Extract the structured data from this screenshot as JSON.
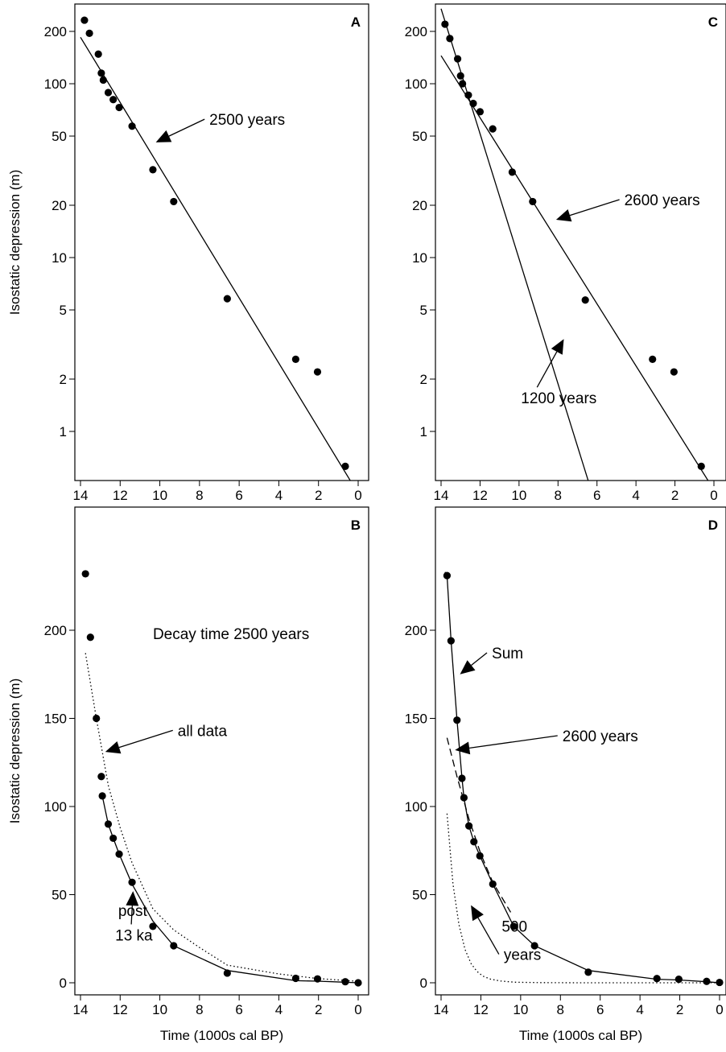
{
  "chart_data": [
    {
      "panel": "A",
      "type": "scatter",
      "scale": "log",
      "ylabel": "Isostatic depression (m)",
      "xlabel": "",
      "xlim": [
        14,
        0
      ],
      "ylim": [
        0.5,
        300
      ],
      "xticks": [
        14,
        12,
        10,
        8,
        6,
        4,
        2,
        0
      ],
      "yticks": [
        1,
        2,
        5,
        10,
        20,
        50,
        100,
        200
      ],
      "points": [
        [
          13.8,
          232
        ],
        [
          13.55,
          195
        ],
        [
          13.1,
          148
        ],
        [
          12.95,
          115
        ],
        [
          12.85,
          105
        ],
        [
          12.6,
          89
        ],
        [
          12.35,
          81
        ],
        [
          12.05,
          73
        ],
        [
          11.4,
          57
        ],
        [
          10.35,
          32
        ],
        [
          9.3,
          21
        ],
        [
          6.6,
          5.8
        ],
        [
          3.15,
          2.6
        ],
        [
          2.05,
          2.2
        ],
        [
          0.65,
          0.63
        ]
      ],
      "lines": [
        {
          "name": "2500 years",
          "style": "solid",
          "x": [
            14,
            0.3
          ],
          "y": [
            185,
            0.5
          ]
        }
      ],
      "annotations": [
        {
          "text": "2500 years",
          "x": 7.5,
          "y": 58,
          "arrow_to": [
            10.2,
            46
          ]
        }
      ]
    },
    {
      "panel": "B",
      "type": "scatter",
      "scale": "linear",
      "ylabel": "Isostatic depression (m)",
      "xlabel": "Time (1000s cal BP)",
      "xlim": [
        14,
        0
      ],
      "ylim": [
        -10,
        240
      ],
      "xticks": [
        14,
        12,
        10,
        8,
        6,
        4,
        2,
        0
      ],
      "yticks": [
        0,
        50,
        100,
        150,
        200
      ],
      "points": [
        [
          13.75,
          232
        ],
        [
          13.5,
          196
        ],
        [
          13.2,
          150
        ],
        [
          12.95,
          117
        ],
        [
          12.9,
          106
        ],
        [
          12.6,
          90
        ],
        [
          12.35,
          82
        ],
        [
          12.05,
          73
        ],
        [
          11.4,
          57
        ],
        [
          10.35,
          32
        ],
        [
          9.3,
          21
        ],
        [
          6.6,
          5.5
        ],
        [
          3.15,
          2.5
        ],
        [
          2.05,
          2.2
        ],
        [
          0.65,
          0.6
        ],
        [
          0.0,
          0.0
        ]
      ],
      "lines": [
        {
          "name": "all data",
          "style": "dotted",
          "x": [
            13.75,
            13.2,
            12.6,
            12.0,
            11.4,
            10.35,
            9.3,
            8,
            6.6,
            4,
            2.05,
            0
          ],
          "y": [
            187,
            150,
            112,
            88,
            68,
            42,
            30,
            20,
            10,
            5,
            2.4,
            0.8
          ]
        },
        {
          "name": "post 13 ka",
          "style": "solid",
          "x": [
            12.9,
            12.6,
            12.35,
            12.05,
            11.4,
            10.35,
            9.3,
            6.6,
            3.15,
            2.05,
            0.65,
            0
          ],
          "y": [
            106,
            90,
            82,
            73,
            56,
            35,
            21,
            7,
            1.2,
            0.9,
            0.3,
            0
          ]
        }
      ],
      "annotations": [
        {
          "text": "Decay time 2500 years",
          "x": 10.35,
          "y": 195
        },
        {
          "text": "all data",
          "x": 9.1,
          "y": 140,
          "arrow_to": [
            12.75,
            131
          ]
        },
        {
          "text": "post",
          "x": 12.1,
          "y": 38
        },
        {
          "text": "13 ka",
          "x": 12.25,
          "y": 24,
          "arrow_to": [
            11.35,
            52
          ]
        }
      ]
    },
    {
      "panel": "C",
      "type": "scatter",
      "scale": "log",
      "ylabel": "",
      "xlabel": "",
      "xlim": [
        14,
        0
      ],
      "ylim": [
        0.5,
        300
      ],
      "xticks": [
        14,
        12,
        10,
        8,
        6,
        4,
        2,
        0
      ],
      "yticks": [
        1,
        2,
        5,
        10,
        20,
        50,
        100,
        200
      ],
      "points": [
        [
          13.8,
          220
        ],
        [
          13.55,
          182
        ],
        [
          13.15,
          139
        ],
        [
          13.0,
          111
        ],
        [
          12.9,
          100
        ],
        [
          12.6,
          86
        ],
        [
          12.35,
          77
        ],
        [
          12.0,
          69
        ],
        [
          11.35,
          55
        ],
        [
          10.35,
          31
        ],
        [
          9.3,
          21
        ],
        [
          6.6,
          5.7
        ],
        [
          3.15,
          2.6
        ],
        [
          2.05,
          2.2
        ],
        [
          0.65,
          0.63
        ]
      ],
      "lines": [
        {
          "name": "2600 years",
          "style": "solid",
          "x": [
            14,
            0.2
          ],
          "y": [
            145,
            0.5
          ]
        },
        {
          "name": "1200 years",
          "style": "solid",
          "x": [
            14,
            6.4
          ],
          "y": [
            270,
            0.5
          ]
        }
      ],
      "annotations": [
        {
          "text": "2600 years",
          "x": 4.6,
          "y": 20,
          "arrow_to": [
            8.1,
            16.5
          ]
        },
        {
          "text": "1200 years",
          "x": 9.9,
          "y": 1.45,
          "arrow_to": [
            7.7,
            3.4
          ]
        }
      ]
    },
    {
      "panel": "D",
      "type": "line",
      "scale": "linear",
      "ylabel": "",
      "xlabel": "Time (1000s cal BP)",
      "xlim": [
        14,
        0
      ],
      "ylim": [
        -10,
        240
      ],
      "xticks": [
        14,
        12,
        10,
        8,
        6,
        4,
        2,
        0
      ],
      "yticks": [
        0,
        50,
        100,
        150,
        200
      ],
      "points": [
        [
          13.7,
          231
        ],
        [
          13.5,
          194
        ],
        [
          13.2,
          149
        ],
        [
          12.95,
          116
        ],
        [
          12.85,
          105
        ],
        [
          12.6,
          89
        ],
        [
          12.35,
          80
        ],
        [
          12.05,
          72
        ],
        [
          11.4,
          56
        ],
        [
          10.35,
          32
        ],
        [
          9.3,
          21
        ],
        [
          6.6,
          6
        ],
        [
          3.15,
          2.4
        ],
        [
          2.05,
          2.0
        ],
        [
          0.65,
          0.8
        ],
        [
          0.0,
          0.2
        ]
      ],
      "lines": [
        {
          "name": "Sum",
          "style": "solid",
          "x": [
            13.8,
            13.7,
            13.5,
            13.2,
            12.95,
            12.85,
            12.6,
            12.35,
            12.05,
            11.4,
            10.35,
            9.3,
            6.6,
            3.15,
            2.05,
            0.65,
            0
          ],
          "y": [
            233,
            231,
            194,
            149,
            116,
            105,
            89,
            80,
            72,
            56,
            32,
            21,
            7,
            2,
            1.6,
            0.6,
            0
          ]
        },
        {
          "name": "2600 years",
          "style": "dashed",
          "x": [
            13.7,
            13.2,
            12.6,
            12.0,
            11.4,
            10.5
          ],
          "y": [
            139,
            117,
            93,
            73,
            57,
            40
          ]
        },
        {
          "name": "500 years",
          "style": "dotted",
          "x": [
            13.7,
            13.4,
            13.1,
            12.8,
            12.5,
            12.2,
            11.9,
            11.5,
            11.0,
            10.3,
            9,
            7,
            4,
            0
          ],
          "y": [
            96,
            56,
            33,
            19,
            11,
            6.5,
            3.8,
            2,
            1,
            0.3,
            0.1,
            0,
            0,
            0
          ]
        }
      ],
      "annotations": [
        {
          "text": "Sum",
          "x": 11.45,
          "y": 184,
          "arrow_to": [
            13.05,
            175
          ]
        },
        {
          "text": "2600 years",
          "x": 7.9,
          "y": 137,
          "arrow_to": [
            13.3,
            132
          ]
        },
        {
          "text": "500",
          "x": 10.95,
          "y": 29
        },
        {
          "text": "years",
          "x": 10.85,
          "y": 13,
          "arrow_to": [
            12.5,
            44
          ]
        }
      ]
    }
  ]
}
